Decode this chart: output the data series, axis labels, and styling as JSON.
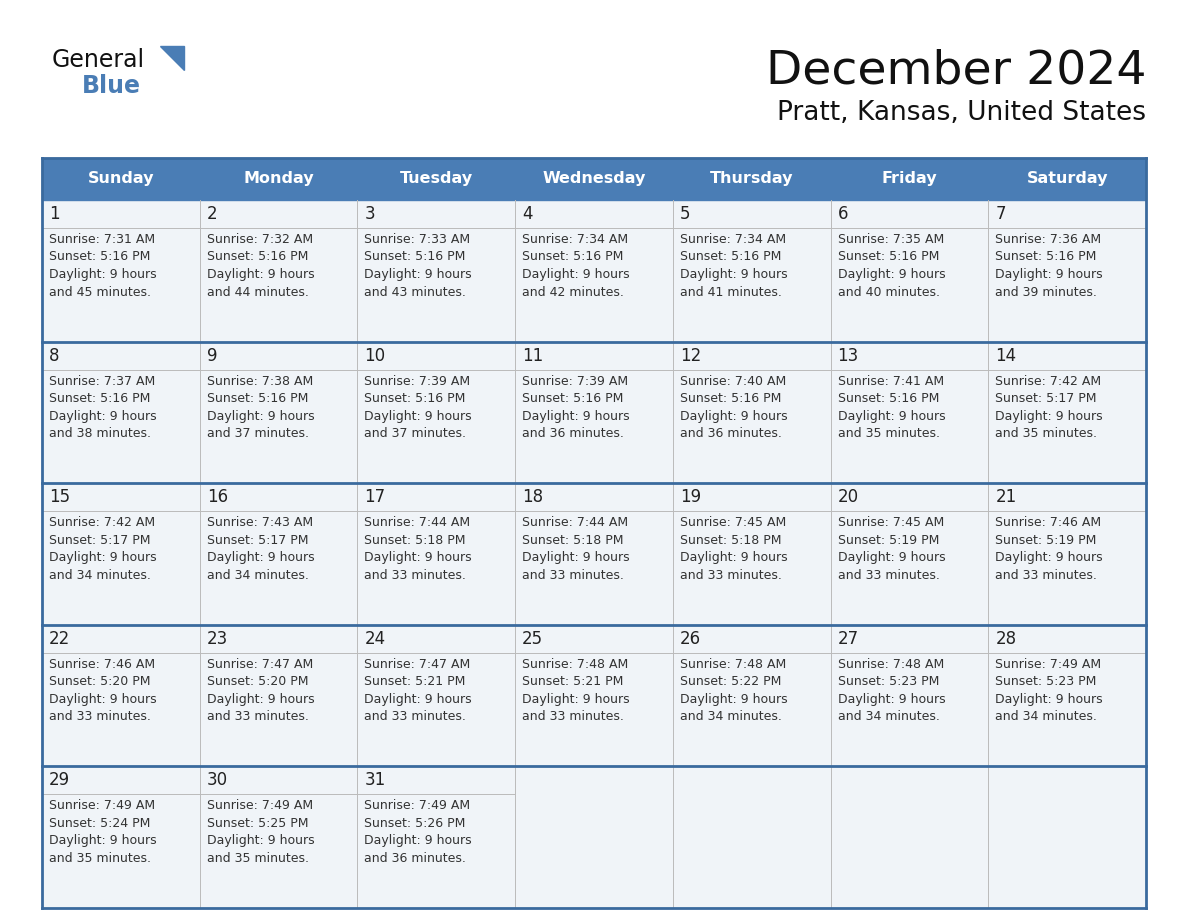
{
  "title": "December 2024",
  "subtitle": "Pratt, Kansas, United States",
  "header_bg_color": "#4a7db5",
  "header_text_color": "#ffffff",
  "days_of_week": [
    "Sunday",
    "Monday",
    "Tuesday",
    "Wednesday",
    "Thursday",
    "Friday",
    "Saturday"
  ],
  "cell_bg_color": "#f0f4f8",
  "cell_bg_white": "#ffffff",
  "row_line_color": "#3a6a9e",
  "inner_line_color": "#bbbbbb",
  "date_color": "#222222",
  "text_color": "#333333",
  "calendar_data": [
    [
      {
        "day": 1,
        "sunrise": "7:31 AM",
        "sunset": "5:16 PM",
        "daylight": "9 hours",
        "daylight2": "and 45 minutes."
      },
      {
        "day": 2,
        "sunrise": "7:32 AM",
        "sunset": "5:16 PM",
        "daylight": "9 hours",
        "daylight2": "and 44 minutes."
      },
      {
        "day": 3,
        "sunrise": "7:33 AM",
        "sunset": "5:16 PM",
        "daylight": "9 hours",
        "daylight2": "and 43 minutes."
      },
      {
        "day": 4,
        "sunrise": "7:34 AM",
        "sunset": "5:16 PM",
        "daylight": "9 hours",
        "daylight2": "and 42 minutes."
      },
      {
        "day": 5,
        "sunrise": "7:34 AM",
        "sunset": "5:16 PM",
        "daylight": "9 hours",
        "daylight2": "and 41 minutes."
      },
      {
        "day": 6,
        "sunrise": "7:35 AM",
        "sunset": "5:16 PM",
        "daylight": "9 hours",
        "daylight2": "and 40 minutes."
      },
      {
        "day": 7,
        "sunrise": "7:36 AM",
        "sunset": "5:16 PM",
        "daylight": "9 hours",
        "daylight2": "and 39 minutes."
      }
    ],
    [
      {
        "day": 8,
        "sunrise": "7:37 AM",
        "sunset": "5:16 PM",
        "daylight": "9 hours",
        "daylight2": "and 38 minutes."
      },
      {
        "day": 9,
        "sunrise": "7:38 AM",
        "sunset": "5:16 PM",
        "daylight": "9 hours",
        "daylight2": "and 37 minutes."
      },
      {
        "day": 10,
        "sunrise": "7:39 AM",
        "sunset": "5:16 PM",
        "daylight": "9 hours",
        "daylight2": "and 37 minutes."
      },
      {
        "day": 11,
        "sunrise": "7:39 AM",
        "sunset": "5:16 PM",
        "daylight": "9 hours",
        "daylight2": "and 36 minutes."
      },
      {
        "day": 12,
        "sunrise": "7:40 AM",
        "sunset": "5:16 PM",
        "daylight": "9 hours",
        "daylight2": "and 36 minutes."
      },
      {
        "day": 13,
        "sunrise": "7:41 AM",
        "sunset": "5:16 PM",
        "daylight": "9 hours",
        "daylight2": "and 35 minutes."
      },
      {
        "day": 14,
        "sunrise": "7:42 AM",
        "sunset": "5:17 PM",
        "daylight": "9 hours",
        "daylight2": "and 35 minutes."
      }
    ],
    [
      {
        "day": 15,
        "sunrise": "7:42 AM",
        "sunset": "5:17 PM",
        "daylight": "9 hours",
        "daylight2": "and 34 minutes."
      },
      {
        "day": 16,
        "sunrise": "7:43 AM",
        "sunset": "5:17 PM",
        "daylight": "9 hours",
        "daylight2": "and 34 minutes."
      },
      {
        "day": 17,
        "sunrise": "7:44 AM",
        "sunset": "5:18 PM",
        "daylight": "9 hours",
        "daylight2": "and 33 minutes."
      },
      {
        "day": 18,
        "sunrise": "7:44 AM",
        "sunset": "5:18 PM",
        "daylight": "9 hours",
        "daylight2": "and 33 minutes."
      },
      {
        "day": 19,
        "sunrise": "7:45 AM",
        "sunset": "5:18 PM",
        "daylight": "9 hours",
        "daylight2": "and 33 minutes."
      },
      {
        "day": 20,
        "sunrise": "7:45 AM",
        "sunset": "5:19 PM",
        "daylight": "9 hours",
        "daylight2": "and 33 minutes."
      },
      {
        "day": 21,
        "sunrise": "7:46 AM",
        "sunset": "5:19 PM",
        "daylight": "9 hours",
        "daylight2": "and 33 minutes."
      }
    ],
    [
      {
        "day": 22,
        "sunrise": "7:46 AM",
        "sunset": "5:20 PM",
        "daylight": "9 hours",
        "daylight2": "and 33 minutes."
      },
      {
        "day": 23,
        "sunrise": "7:47 AM",
        "sunset": "5:20 PM",
        "daylight": "9 hours",
        "daylight2": "and 33 minutes."
      },
      {
        "day": 24,
        "sunrise": "7:47 AM",
        "sunset": "5:21 PM",
        "daylight": "9 hours",
        "daylight2": "and 33 minutes."
      },
      {
        "day": 25,
        "sunrise": "7:48 AM",
        "sunset": "5:21 PM",
        "daylight": "9 hours",
        "daylight2": "and 33 minutes."
      },
      {
        "day": 26,
        "sunrise": "7:48 AM",
        "sunset": "5:22 PM",
        "daylight": "9 hours",
        "daylight2": "and 34 minutes."
      },
      {
        "day": 27,
        "sunrise": "7:48 AM",
        "sunset": "5:23 PM",
        "daylight": "9 hours",
        "daylight2": "and 34 minutes."
      },
      {
        "day": 28,
        "sunrise": "7:49 AM",
        "sunset": "5:23 PM",
        "daylight": "9 hours",
        "daylight2": "and 34 minutes."
      }
    ],
    [
      {
        "day": 29,
        "sunrise": "7:49 AM",
        "sunset": "5:24 PM",
        "daylight": "9 hours",
        "daylight2": "and 35 minutes."
      },
      {
        "day": 30,
        "sunrise": "7:49 AM",
        "sunset": "5:25 PM",
        "daylight": "9 hours",
        "daylight2": "and 35 minutes."
      },
      {
        "day": 31,
        "sunrise": "7:49 AM",
        "sunset": "5:26 PM",
        "daylight": "9 hours",
        "daylight2": "and 36 minutes."
      },
      null,
      null,
      null,
      null
    ]
  ]
}
